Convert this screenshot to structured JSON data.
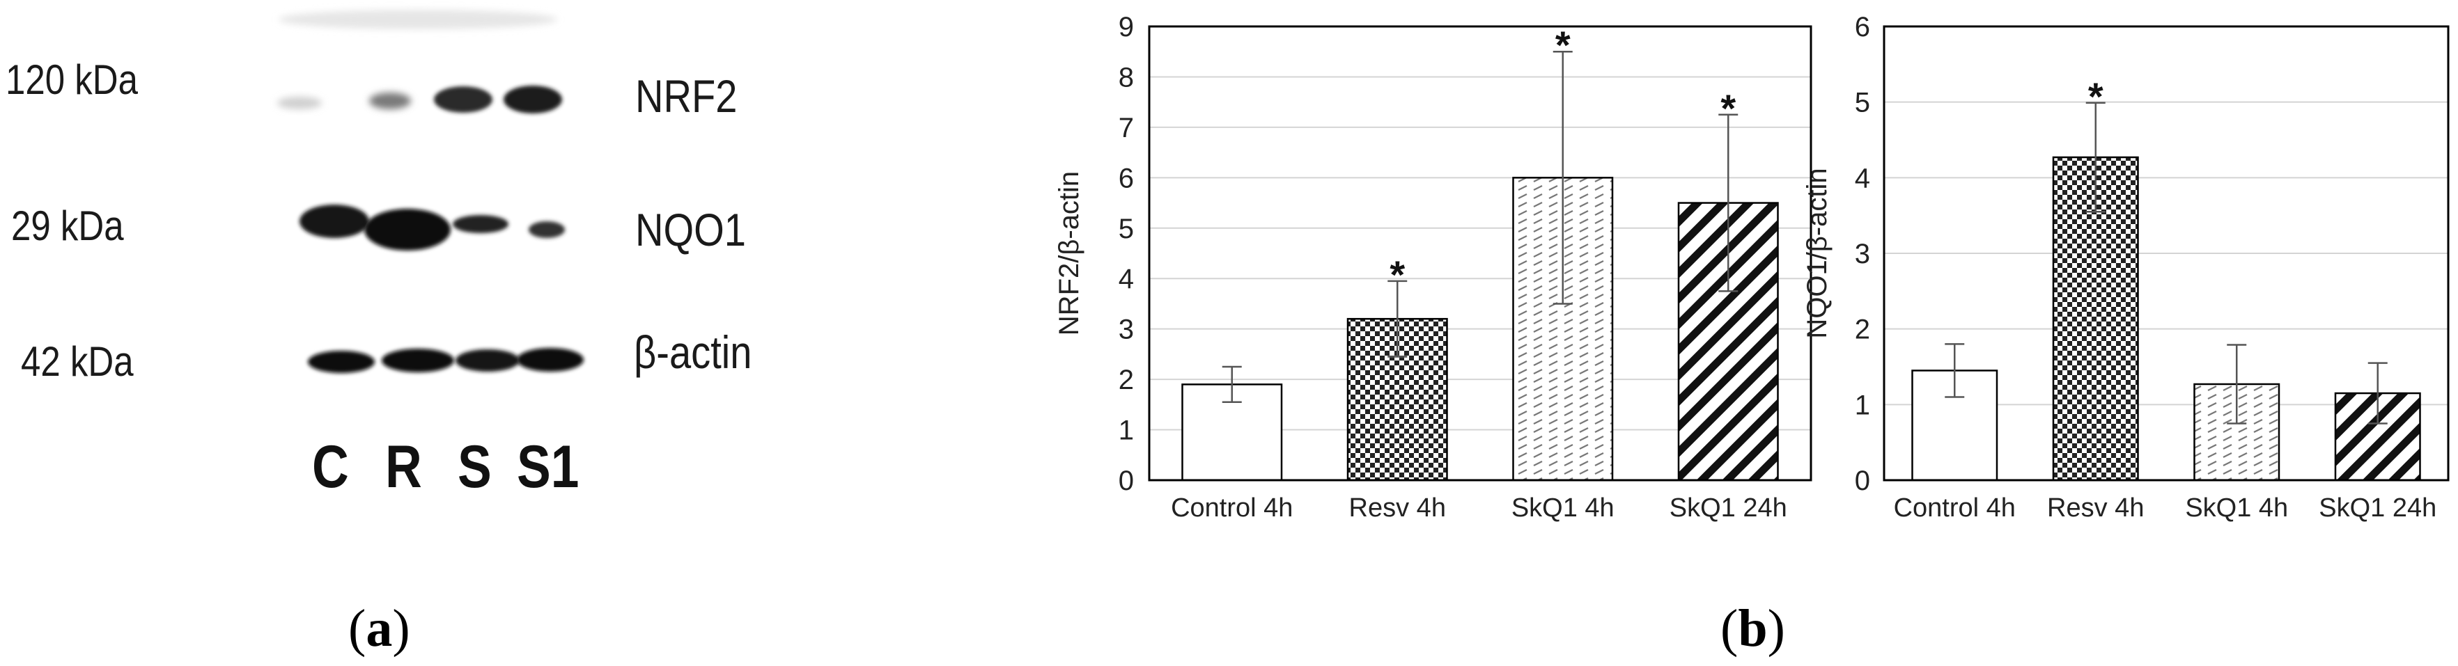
{
  "panel_a": {
    "label": "a",
    "markers": [
      "120 kDa",
      "29 kDa",
      "42 kDa"
    ],
    "proteins": [
      "NRF2",
      "NQO1",
      "β-actin"
    ],
    "lanes": [
      "C",
      "R",
      "S",
      "S1"
    ]
  },
  "panel_b": {
    "label": "b"
  },
  "chart_data": [
    {
      "type": "bar",
      "categories": [
        "Control 4h",
        "Resv 4h",
        "SkQ1 4h",
        "SkQ1 24h"
      ],
      "values": [
        1.9,
        3.2,
        6.0,
        5.5
      ],
      "errors": [
        0.35,
        0.75,
        2.5,
        1.75
      ],
      "significant": [
        false,
        true,
        true,
        true
      ],
      "marker": "*",
      "patterns": [
        "none",
        "checker",
        "dashes",
        "diagonal"
      ],
      "title": "",
      "xlabel": "",
      "ylabel": "NRF2/β-actin",
      "ylim": [
        0,
        9
      ],
      "yticks": [
        0,
        1,
        2,
        3,
        4,
        5,
        6,
        7,
        8,
        9
      ],
      "grid": true,
      "legend": "none"
    },
    {
      "type": "bar",
      "categories": [
        "Control 4h",
        "Resv 4h",
        "SkQ1 4h",
        "SkQ1 24h"
      ],
      "values": [
        1.45,
        4.27,
        1.27,
        1.15
      ],
      "errors": [
        0.35,
        0.72,
        0.52,
        0.4
      ],
      "significant": [
        false,
        true,
        false,
        false
      ],
      "marker": "*",
      "patterns": [
        "none",
        "checker",
        "dashes",
        "diagonal"
      ],
      "title": "",
      "xlabel": "",
      "ylabel": "NQO1/β-actin",
      "ylim": [
        0,
        6
      ],
      "yticks": [
        0,
        1,
        2,
        3,
        4,
        5,
        6
      ],
      "grid": true,
      "legend": "none"
    }
  ]
}
